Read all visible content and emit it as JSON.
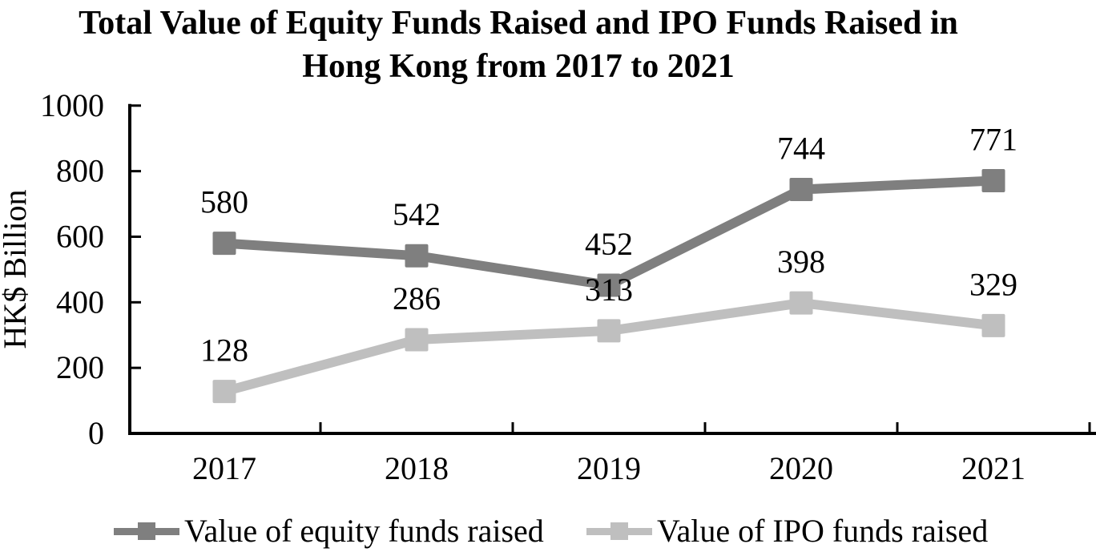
{
  "title": {
    "line1": "Total Value of Equity Funds Raised and IPO Funds Raised in",
    "line2": "Hong Kong from 2017 to 2021"
  },
  "chart_data": {
    "type": "line",
    "categories": [
      "2017",
      "2018",
      "2019",
      "2020",
      "2021"
    ],
    "series": [
      {
        "name": "Value of equity funds raised",
        "values": [
          580,
          542,
          452,
          744,
          771
        ],
        "color": "#7f7f7f",
        "marker": "square"
      },
      {
        "name": "Value of IPO funds raised",
        "values": [
          128,
          286,
          313,
          398,
          329
        ],
        "color": "#bfbfbf",
        "marker": "square"
      }
    ],
    "title": "Total Value of Equity Funds Raised and IPO Funds Raised in Hong Kong from 2017 to 2021",
    "xlabel": "",
    "ylabel": "HK$ Billion",
    "ylim": [
      0,
      1000
    ],
    "yticks": [
      0,
      200,
      400,
      600,
      800,
      1000
    ],
    "grid": false,
    "data_labels": true,
    "legend_position": "bottom",
    "axis_color": "#000000",
    "text_color": "#000000"
  }
}
